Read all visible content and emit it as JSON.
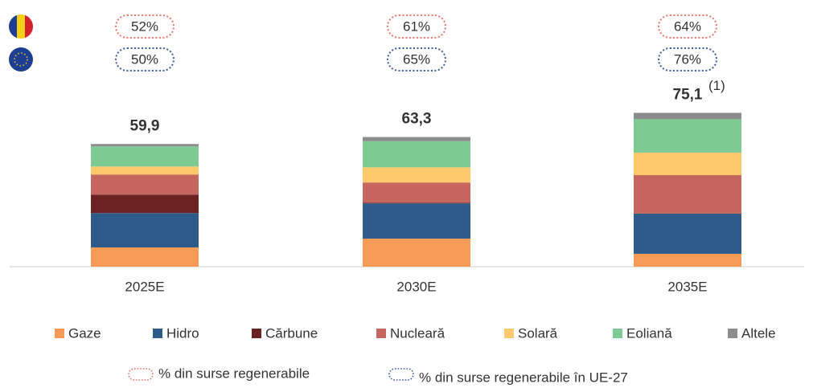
{
  "chart_data": {
    "type": "bar",
    "stacked": true,
    "categories": [
      "2025E",
      "2030E",
      "2035E"
    ],
    "ylim": [
      0,
      80
    ],
    "series": [
      {
        "name": "Gaze",
        "color": "#f79a55",
        "values": [
          9.4,
          13.7,
          6.3
        ]
      },
      {
        "name": "Hidro",
        "color": "#2f5b8a",
        "values": [
          16.8,
          17.2,
          19.6
        ]
      },
      {
        "name": "Cărbune",
        "color": "#6b2220",
        "values": [
          9.0,
          0.4,
          0
        ]
      },
      {
        "name": "Nucleară",
        "color": "#c5675e",
        "values": [
          9.8,
          9.8,
          18.8
        ]
      },
      {
        "name": "Solară",
        "color": "#fdc96a",
        "values": [
          3.9,
          7.4,
          11.0
        ]
      },
      {
        "name": "Eoliană",
        "color": "#7dcb92",
        "values": [
          9.8,
          12.8,
          16.3
        ]
      },
      {
        "name": "Altele",
        "color": "#8c8c8c",
        "values": [
          1.2,
          2.0,
          3.1
        ]
      }
    ],
    "totals": {
      "values": [
        59.9,
        63.3,
        75.1
      ],
      "value_labels": [
        "59,9",
        "63,3",
        "75,1"
      ],
      "note": "(1)"
    },
    "indicators": [
      {
        "name": "% din surse regenerabile",
        "color": "#e8756a",
        "values": [
          52,
          61,
          64
        ],
        "value_labels": [
          "52%",
          "61%",
          "64%"
        ]
      },
      {
        "name": "% din surse regenerabile în UE-27",
        "color": "#3a5fa0",
        "values": [
          50,
          65,
          76
        ],
        "value_labels": [
          "50%",
          "65%",
          "76%"
        ]
      }
    ]
  }
}
